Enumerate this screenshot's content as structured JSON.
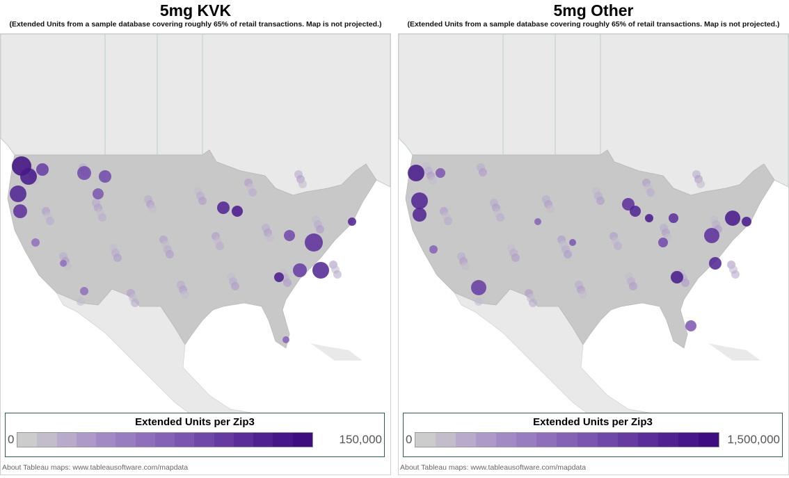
{
  "panels": [
    {
      "title": "5mg KVK",
      "subtitle": "(Extended Units from a sample database covering roughly 65% of retail transactions. Map is not projected.)",
      "legend": {
        "title": "Extended Units per Zip3",
        "min": "0",
        "max": "150,000"
      },
      "footer": "About Tableau maps: www.tableausoftware.com/mapdata"
    },
    {
      "title": "5mg Other",
      "subtitle": "(Extended Units from a sample database covering roughly 65% of retail transactions. Map is not projected.)",
      "legend": {
        "title": "Extended Units per Zip3",
        "min": "0",
        "max": "1,500,000"
      },
      "footer": "About Tableau maps: www.tableausoftware.com/mapdata"
    }
  ],
  "colors": {
    "ramp": [
      "#cccccc",
      "#c3bccb",
      "#b8aacb",
      "#ad9ac8",
      "#a28bc4",
      "#987dc0",
      "#8f6fbc",
      "#8562b6",
      "#7b55b0",
      "#7048a9",
      "#653ba2",
      "#5a2e9a",
      "#4f2292",
      "#461789",
      "#3e0d80"
    ],
    "land": "#e9e9e9",
    "us_base": "#c8c8c8",
    "legend_border": "#2f5f4a"
  }
}
